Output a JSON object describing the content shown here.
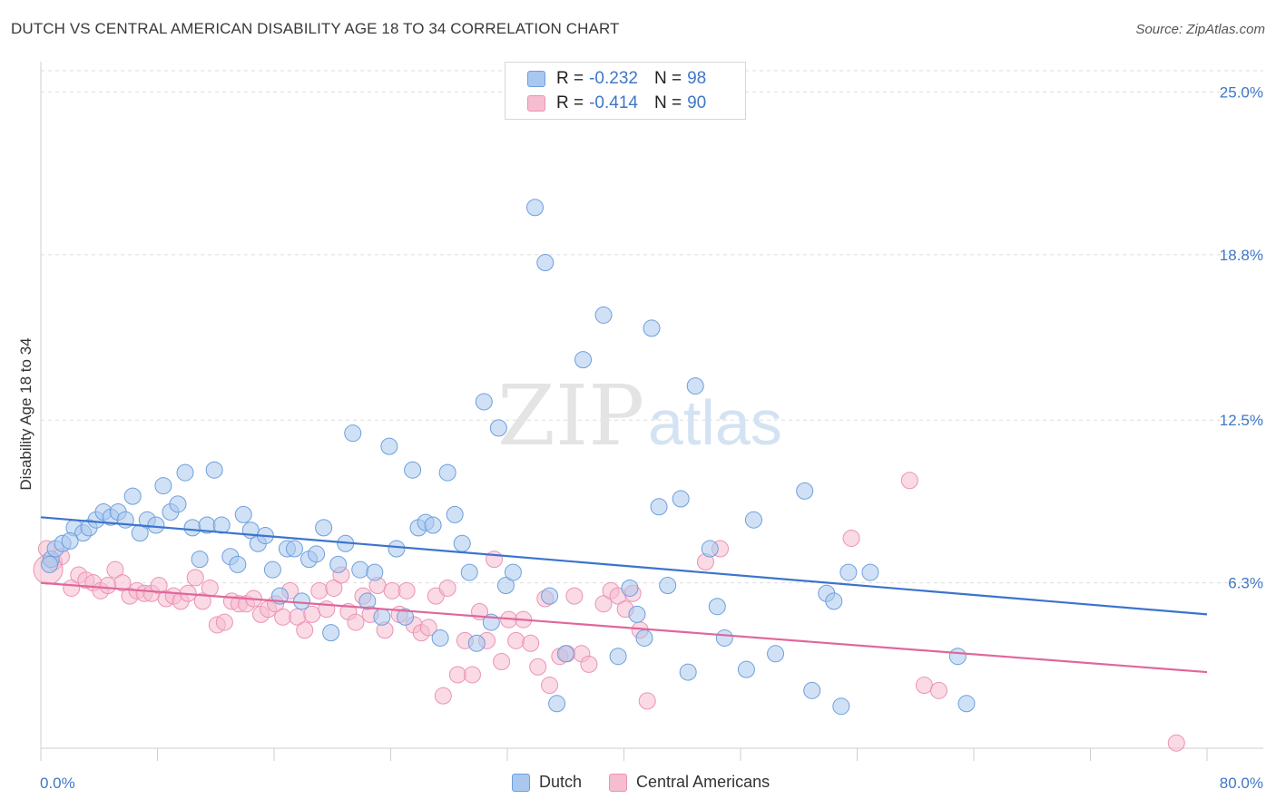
{
  "title": "DUTCH VS CENTRAL AMERICAN DISABILITY AGE 18 TO 34 CORRELATION CHART",
  "source": "Source: ZipAtlas.com",
  "watermark": {
    "zip": "ZIP",
    "atlas": "atlas"
  },
  "legend": {
    "rows": [
      {
        "r_label": "R = ",
        "r_value": "-0.232",
        "n_label": "N = ",
        "n_value": "98"
      },
      {
        "r_label": "R = ",
        "r_value": "-0.414",
        "n_label": "N = ",
        "n_value": "90"
      }
    ]
  },
  "bottom_legend": {
    "dutch": "Dutch",
    "central": "Central Americans"
  },
  "colors": {
    "dutch_fill": "#a9c8ef",
    "dutch_stroke": "#6d9fdc",
    "dutch_line": "#3c74cc",
    "central_fill": "#f6bcd0",
    "central_stroke": "#ec93b3",
    "central_line": "#e0679a",
    "axis_text": "#3f77c8",
    "grid": "#dddddd"
  },
  "chart_data": {
    "type": "scatter",
    "title": "DUTCH VS CENTRAL AMERICAN DISABILITY AGE 18 TO 34 CORRELATION CHART",
    "xlabel": "",
    "ylabel": "Disability Age 18 to 34",
    "xlim": [
      0,
      80
    ],
    "ylim": [
      0,
      26.5
    ],
    "x_tick_labels": [
      "0.0%",
      "80.0%"
    ],
    "y_ticks": [
      6.3,
      12.5,
      18.8,
      25.0
    ],
    "y_tick_labels": [
      "6.3%",
      "12.5%",
      "18.8%",
      "25.0%"
    ],
    "grid": "horizontal dashed",
    "legend_position": "top-center",
    "series": [
      {
        "name": "Dutch",
        "r": -0.232,
        "n": 98,
        "trend": {
          "x": [
            0,
            80
          ],
          "y": [
            8.8,
            5.1
          ]
        },
        "points": [
          [
            0.7,
            7.2
          ],
          [
            1.0,
            7.6
          ],
          [
            1.5,
            7.8
          ],
          [
            2.3,
            8.4
          ],
          [
            2.9,
            8.2
          ],
          [
            3.3,
            8.4
          ],
          [
            3.8,
            8.7
          ],
          [
            4.3,
            9.0
          ],
          [
            4.8,
            8.8
          ],
          [
            5.3,
            9.0
          ],
          [
            5.8,
            8.7
          ],
          [
            6.3,
            9.6
          ],
          [
            6.8,
            8.2
          ],
          [
            7.3,
            8.7
          ],
          [
            7.9,
            8.5
          ],
          [
            8.4,
            10.0
          ],
          [
            8.9,
            9.0
          ],
          [
            9.4,
            9.3
          ],
          [
            9.9,
            10.5
          ],
          [
            10.4,
            8.4
          ],
          [
            10.9,
            7.2
          ],
          [
            11.4,
            8.5
          ],
          [
            11.9,
            10.6
          ],
          [
            12.4,
            8.5
          ],
          [
            13.0,
            7.3
          ],
          [
            13.5,
            7.0
          ],
          [
            13.9,
            8.9
          ],
          [
            14.4,
            8.3
          ],
          [
            14.9,
            7.8
          ],
          [
            15.4,
            8.1
          ],
          [
            15.9,
            6.8
          ],
          [
            16.4,
            5.8
          ],
          [
            16.9,
            7.6
          ],
          [
            17.4,
            7.6
          ],
          [
            17.9,
            5.6
          ],
          [
            18.4,
            7.2
          ],
          [
            18.9,
            7.4
          ],
          [
            19.4,
            8.4
          ],
          [
            19.9,
            4.4
          ],
          [
            20.4,
            7.0
          ],
          [
            20.9,
            7.8
          ],
          [
            21.4,
            12.0
          ],
          [
            21.9,
            6.8
          ],
          [
            22.4,
            5.6
          ],
          [
            22.9,
            6.7
          ],
          [
            23.4,
            5.0
          ],
          [
            23.9,
            11.5
          ],
          [
            24.4,
            7.6
          ],
          [
            25.0,
            5.0
          ],
          [
            25.5,
            10.6
          ],
          [
            25.9,
            8.4
          ],
          [
            26.4,
            8.6
          ],
          [
            26.9,
            8.5
          ],
          [
            27.4,
            4.2
          ],
          [
            27.9,
            10.5
          ],
          [
            28.4,
            8.9
          ],
          [
            28.9,
            7.8
          ],
          [
            29.4,
            6.7
          ],
          [
            29.9,
            4.0
          ],
          [
            30.4,
            13.2
          ],
          [
            30.9,
            4.8
          ],
          [
            31.4,
            12.2
          ],
          [
            31.9,
            6.2
          ],
          [
            32.4,
            6.7
          ],
          [
            33.9,
            20.6
          ],
          [
            34.6,
            18.5
          ],
          [
            34.9,
            5.8
          ],
          [
            35.4,
            1.7
          ],
          [
            36.0,
            3.6
          ],
          [
            37.2,
            14.8
          ],
          [
            38.6,
            16.5
          ],
          [
            39.6,
            3.5
          ],
          [
            40.4,
            6.1
          ],
          [
            40.9,
            5.1
          ],
          [
            41.4,
            4.2
          ],
          [
            41.9,
            16.0
          ],
          [
            42.4,
            9.2
          ],
          [
            43.0,
            6.2
          ],
          [
            43.9,
            9.5
          ],
          [
            44.4,
            2.9
          ],
          [
            44.9,
            13.8
          ],
          [
            45.9,
            7.6
          ],
          [
            46.4,
            5.4
          ],
          [
            46.9,
            4.2
          ],
          [
            48.4,
            3.0
          ],
          [
            48.9,
            8.7
          ],
          [
            50.4,
            3.6
          ],
          [
            52.4,
            9.8
          ],
          [
            52.9,
            2.2
          ],
          [
            53.9,
            5.9
          ],
          [
            54.4,
            5.6
          ],
          [
            54.9,
            1.6
          ],
          [
            55.4,
            6.7
          ],
          [
            56.9,
            6.7
          ],
          [
            62.9,
            3.5
          ],
          [
            63.5,
            1.7
          ],
          [
            0.6,
            7.0
          ],
          [
            2.0,
            7.9
          ]
        ]
      },
      {
        "name": "Central Americans",
        "r": -0.414,
        "n": 90,
        "trend": {
          "x": [
            0,
            80
          ],
          "y": [
            6.3,
            2.9
          ]
        },
        "points": [
          [
            0.4,
            7.6
          ],
          [
            0.9,
            7.1
          ],
          [
            1.4,
            7.3
          ],
          [
            2.1,
            6.1
          ],
          [
            2.6,
            6.6
          ],
          [
            3.1,
            6.4
          ],
          [
            3.6,
            6.3
          ],
          [
            4.1,
            6.0
          ],
          [
            4.6,
            6.2
          ],
          [
            5.1,
            6.8
          ],
          [
            5.6,
            6.3
          ],
          [
            6.1,
            5.8
          ],
          [
            6.6,
            6.0
          ],
          [
            7.1,
            5.9
          ],
          [
            7.6,
            5.9
          ],
          [
            8.1,
            6.2
          ],
          [
            8.6,
            5.7
          ],
          [
            9.1,
            5.8
          ],
          [
            9.6,
            5.6
          ],
          [
            10.1,
            5.9
          ],
          [
            10.6,
            6.5
          ],
          [
            11.1,
            5.6
          ],
          [
            11.6,
            6.1
          ],
          [
            12.1,
            4.7
          ],
          [
            12.6,
            4.8
          ],
          [
            13.1,
            5.6
          ],
          [
            13.6,
            5.5
          ],
          [
            14.1,
            5.5
          ],
          [
            14.6,
            5.7
          ],
          [
            15.1,
            5.1
          ],
          [
            15.6,
            5.3
          ],
          [
            16.1,
            5.5
          ],
          [
            16.6,
            5.0
          ],
          [
            17.1,
            6.0
          ],
          [
            17.6,
            5.0
          ],
          [
            18.1,
            4.5
          ],
          [
            18.6,
            5.1
          ],
          [
            19.1,
            6.0
          ],
          [
            19.6,
            5.3
          ],
          [
            20.1,
            6.1
          ],
          [
            20.6,
            6.6
          ],
          [
            21.1,
            5.2
          ],
          [
            21.6,
            4.8
          ],
          [
            22.1,
            5.8
          ],
          [
            22.6,
            5.1
          ],
          [
            23.1,
            6.2
          ],
          [
            23.6,
            4.5
          ],
          [
            24.1,
            6.0
          ],
          [
            24.6,
            5.1
          ],
          [
            25.1,
            6.0
          ],
          [
            25.6,
            4.7
          ],
          [
            26.1,
            4.4
          ],
          [
            26.6,
            4.6
          ],
          [
            27.1,
            5.8
          ],
          [
            27.6,
            2.0
          ],
          [
            27.9,
            6.1
          ],
          [
            28.6,
            2.8
          ],
          [
            29.1,
            4.1
          ],
          [
            29.6,
            2.8
          ],
          [
            30.1,
            5.2
          ],
          [
            30.6,
            4.1
          ],
          [
            31.1,
            7.2
          ],
          [
            31.6,
            3.3
          ],
          [
            32.1,
            4.9
          ],
          [
            32.6,
            4.1
          ],
          [
            33.1,
            4.9
          ],
          [
            33.6,
            4.0
          ],
          [
            34.1,
            3.1
          ],
          [
            34.6,
            5.7
          ],
          [
            34.9,
            2.4
          ],
          [
            35.6,
            3.5
          ],
          [
            36.1,
            3.6
          ],
          [
            36.6,
            5.8
          ],
          [
            37.1,
            3.6
          ],
          [
            37.6,
            3.2
          ],
          [
            38.6,
            5.5
          ],
          [
            39.1,
            6.0
          ],
          [
            39.6,
            5.8
          ],
          [
            40.1,
            5.3
          ],
          [
            40.6,
            5.9
          ],
          [
            41.1,
            4.5
          ],
          [
            41.6,
            1.8
          ],
          [
            45.6,
            7.1
          ],
          [
            46.6,
            7.6
          ],
          [
            55.6,
            8.0
          ],
          [
            59.6,
            10.2
          ],
          [
            60.6,
            2.4
          ],
          [
            61.6,
            2.2
          ],
          [
            77.9,
            0.2
          ],
          [
            0.5,
            6.8
          ]
        ]
      }
    ]
  }
}
